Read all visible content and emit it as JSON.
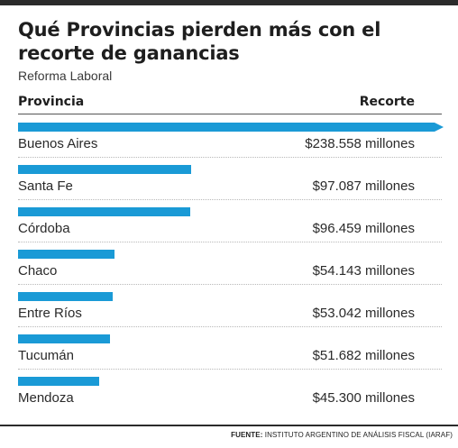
{
  "chart_data": {
    "type": "bar",
    "orientation": "horizontal",
    "title": "Qué Provincias pierden más con el recorte de ganancias",
    "subtitle": "Reforma Laboral",
    "column_headers": {
      "category": "Provincia",
      "value": "Recorte"
    },
    "categories": [
      "Buenos Aires",
      "Santa Fe",
      "Córdoba",
      "Chaco",
      "Entre Ríos",
      "Tucumán",
      "Mendoza"
    ],
    "values": [
      238558,
      97087,
      96459,
      54143,
      53042,
      51682,
      45300
    ],
    "value_labels": [
      "$238.558 millones",
      "$97.087 millones",
      "$96.459 millones",
      "$54.143 millones",
      "$53.042 millones",
      "$51.682 millones",
      "$45.300 millones"
    ],
    "bar_color": "#1a9ad6"
  },
  "source": {
    "label": "FUENTE:",
    "text": "INSTITUTO ARGENTINO DE ANÁLISIS FISCAL (IARAF)"
  }
}
